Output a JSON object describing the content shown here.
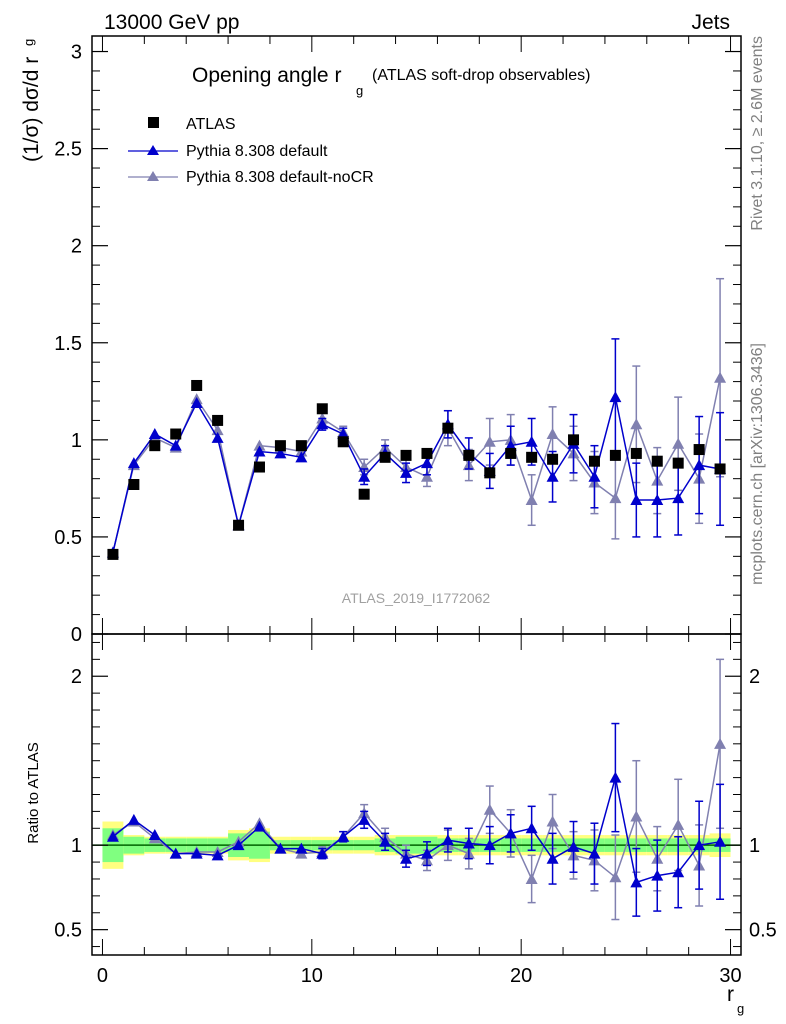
{
  "header": {
    "left": "13000 GeV pp",
    "right": "Jets"
  },
  "side_labels": {
    "rivet": "Rivet 3.1.10, ≥ 2.6M events",
    "mcplots": "mcplots.cern.ch [arXiv:1306.3436]"
  },
  "analysis_tag": "ATLAS_2019_I1772062",
  "colors": {
    "data": "#000000",
    "default": "#0000cc",
    "nocr": "#8080b0",
    "band_outer": "#ffff80",
    "band_inner": "#80ff80",
    "ref_line": "#006400"
  },
  "chart_data": [
    {
      "type": "line",
      "panel": "main",
      "title_main": "Opening angle r",
      "title_sub": "g",
      "title_extra": "(ATLAS soft-drop observables)",
      "ylabel": "(1/σ) dσ/d r",
      "ylabel_sub": "g",
      "xlim": [
        -0.5,
        30.5
      ],
      "ylim": [
        0,
        3.08
      ],
      "yticks": [
        0,
        0.5,
        1,
        1.5,
        2,
        2.5,
        3
      ],
      "ytick_labels": [
        "0",
        "0.5",
        "1",
        "1.5",
        "2",
        "2.5",
        "3"
      ],
      "x": [
        0.5,
        1.5,
        2.5,
        3.5,
        4.5,
        5.5,
        6.5,
        7.5,
        8.5,
        9.5,
        10.5,
        11.5,
        12.5,
        13.5,
        14.5,
        15.5,
        16.5,
        17.5,
        18.5,
        19.5,
        20.5,
        21.5,
        22.5,
        23.5,
        24.5,
        25.5,
        26.5,
        27.5,
        28.5,
        29.5
      ],
      "legend": [
        "ATLAS",
        "Pythia 8.308 default",
        "Pythia 8.308 default-noCR"
      ],
      "series": [
        {
          "name": "ATLAS",
          "key": "data",
          "marker": "square",
          "values": [
            0.41,
            0.77,
            0.97,
            1.03,
            1.28,
            1.1,
            0.56,
            0.86,
            0.97,
            0.97,
            1.16,
            0.99,
            0.72,
            0.91,
            0.92,
            0.93,
            1.06,
            0.92,
            0.83,
            0.93,
            0.91,
            0.9,
            1.0,
            0.89,
            0.92,
            0.93,
            0.89,
            0.88,
            0.95,
            0.85
          ]
        },
        {
          "name": "Pythia 8.308 default",
          "key": "default",
          "marker": "triangle",
          "values": [
            0.42,
            0.88,
            1.03,
            0.97,
            1.19,
            1.01,
            0.56,
            0.94,
            0.93,
            0.91,
            1.08,
            1.03,
            0.81,
            0.93,
            0.83,
            0.88,
            1.08,
            0.93,
            0.84,
            0.97,
            0.99,
            0.81,
            0.98,
            0.81,
            1.22,
            0.69,
            0.69,
            0.7,
            0.87,
            0.85
          ],
          "errors": [
            0.005,
            0.01,
            0.01,
            0.01,
            0.01,
            0.02,
            0.01,
            0.02,
            0.02,
            0.02,
            0.03,
            0.03,
            0.04,
            0.04,
            0.05,
            0.06,
            0.07,
            0.08,
            0.09,
            0.1,
            0.12,
            0.13,
            0.15,
            0.16,
            0.3,
            0.19,
            0.19,
            0.19,
            0.25,
            0.29
          ]
        },
        {
          "name": "Pythia 8.308 default-noCR",
          "key": "nocr",
          "marker": "triangle",
          "values": [
            0.42,
            0.87,
            1.01,
            0.96,
            1.21,
            1.05,
            0.56,
            0.97,
            0.96,
            0.94,
            1.11,
            1.04,
            0.86,
            0.96,
            0.86,
            0.81,
            1.06,
            0.87,
            0.99,
            1.0,
            0.69,
            1.03,
            0.93,
            0.78,
            0.7,
            1.08,
            0.79,
            0.98,
            0.8,
            1.32
          ],
          "errors": [
            0.005,
            0.01,
            0.01,
            0.01,
            0.01,
            0.02,
            0.01,
            0.02,
            0.02,
            0.02,
            0.03,
            0.03,
            0.04,
            0.04,
            0.05,
            0.05,
            0.09,
            0.08,
            0.12,
            0.13,
            0.13,
            0.14,
            0.14,
            0.16,
            0.21,
            0.3,
            0.17,
            0.24,
            0.23,
            0.51
          ]
        }
      ]
    },
    {
      "type": "line",
      "panel": "ratio",
      "ylabel": "Ratio to ATLAS",
      "xlabel": "r",
      "xlabel_sub": "g",
      "xlim": [
        -0.5,
        30.5
      ],
      "ylim": [
        0.35,
        2.25
      ],
      "yticks": [
        0.5,
        1,
        2
      ],
      "ytick_labels": [
        "0.5",
        "1",
        "2"
      ],
      "xticks": [
        0,
        10,
        20,
        30
      ],
      "xtick_labels": [
        "0",
        "10",
        "20",
        "30"
      ],
      "x": [
        0.5,
        1.5,
        2.5,
        3.5,
        4.5,
        5.5,
        6.5,
        7.5,
        8.5,
        9.5,
        10.5,
        11.5,
        12.5,
        13.5,
        14.5,
        15.5,
        16.5,
        17.5,
        18.5,
        19.5,
        20.5,
        21.5,
        22.5,
        23.5,
        24.5,
        25.5,
        26.5,
        27.5,
        28.5,
        29.5
      ],
      "band_inner": [
        0.1,
        0.05,
        0.04,
        0.04,
        0.04,
        0.04,
        0.07,
        0.08,
        0.03,
        0.03,
        0.03,
        0.03,
        0.03,
        0.04,
        0.05,
        0.05,
        0.04,
        0.04,
        0.04,
        0.04,
        0.04,
        0.04,
        0.04,
        0.04,
        0.04,
        0.04,
        0.04,
        0.04,
        0.04,
        0.04
      ],
      "band_outer": [
        0.14,
        0.06,
        0.05,
        0.05,
        0.05,
        0.05,
        0.09,
        0.1,
        0.05,
        0.05,
        0.05,
        0.05,
        0.05,
        0.06,
        0.06,
        0.06,
        0.06,
        0.06,
        0.06,
        0.06,
        0.06,
        0.06,
        0.06,
        0.06,
        0.06,
        0.06,
        0.06,
        0.06,
        0.06,
        0.07
      ],
      "series": [
        {
          "name": "Pythia 8.308 default",
          "key": "default",
          "values": [
            1.05,
            1.15,
            1.06,
            0.95,
            0.95,
            0.94,
            1.0,
            1.11,
            0.98,
            0.98,
            0.95,
            1.05,
            1.15,
            1.02,
            0.92,
            0.95,
            1.03,
            1.01,
            1.0,
            1.07,
            1.1,
            0.92,
            0.99,
            0.95,
            1.4,
            0.78,
            0.82,
            0.84,
            1.0,
            1.02
          ],
          "errors": [
            0.01,
            0.01,
            0.01,
            0.01,
            0.01,
            0.02,
            0.02,
            0.02,
            0.02,
            0.02,
            0.03,
            0.03,
            0.05,
            0.05,
            0.05,
            0.07,
            0.07,
            0.09,
            0.11,
            0.11,
            0.13,
            0.15,
            0.15,
            0.18,
            0.32,
            0.2,
            0.21,
            0.21,
            0.26,
            0.34
          ]
        },
        {
          "name": "Pythia 8.308 default-noCR",
          "key": "nocr",
          "values": [
            1.06,
            1.14,
            1.04,
            0.95,
            0.96,
            0.96,
            1.02,
            1.13,
            0.98,
            0.95,
            0.96,
            1.05,
            1.19,
            1.05,
            0.95,
            0.91,
            1.0,
            0.95,
            1.21,
            1.07,
            0.8,
            1.14,
            0.94,
            0.91,
            0.81,
            1.17,
            0.92,
            1.12,
            0.88,
            1.6
          ],
          "errors": [
            0.01,
            0.01,
            0.01,
            0.01,
            0.01,
            0.02,
            0.02,
            0.02,
            0.02,
            0.02,
            0.03,
            0.03,
            0.05,
            0.05,
            0.05,
            0.06,
            0.09,
            0.09,
            0.14,
            0.14,
            0.14,
            0.16,
            0.14,
            0.18,
            0.25,
            0.33,
            0.19,
            0.27,
            0.24,
            0.5
          ]
        }
      ]
    }
  ]
}
